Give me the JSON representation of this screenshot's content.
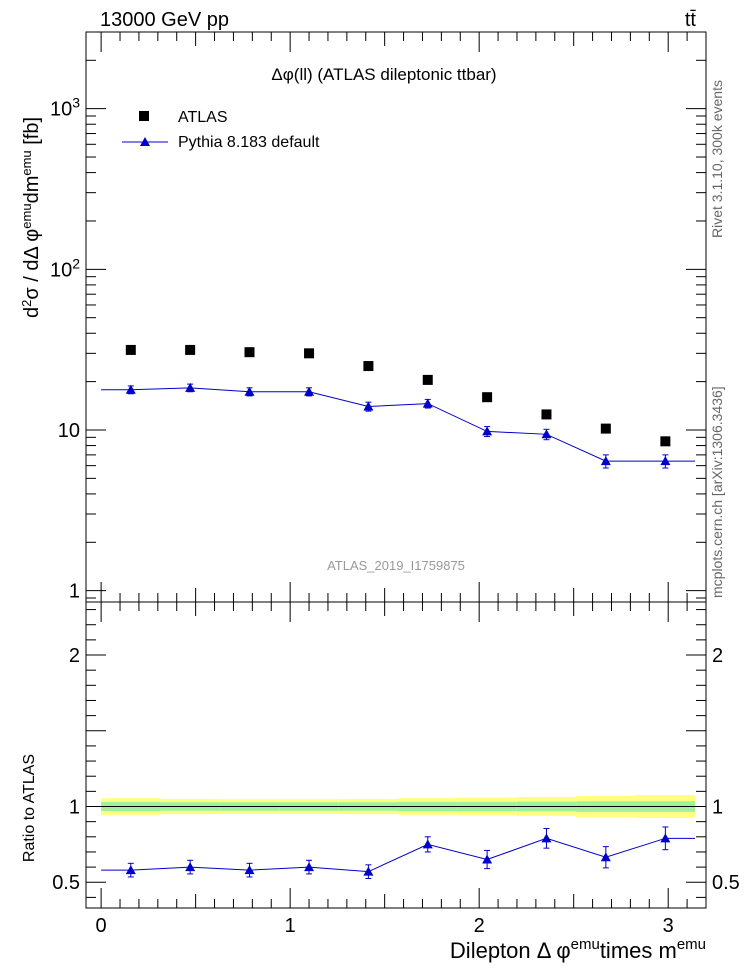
{
  "header": {
    "left_label": "13000 GeV pp",
    "right_label": "tt̄"
  },
  "side_labels": {
    "rivet": "Rivet 3.1.10, 300k events",
    "mcplots": "mcplots.cern.ch [arXiv:1306.3436]"
  },
  "colors": {
    "data_marker": "#000000",
    "mc_line": "#0000cc",
    "band_inner": "#a0f0a0",
    "band_outer": "#ffff80"
  },
  "chart_data": [
    {
      "type": "scatter",
      "panel": "main",
      "title": "Δφ(ll) (ATLAS dileptonic ttbar)",
      "watermark": "ATLAS_2019_I1759875",
      "ylabel": "d²σ / dΔ φ^emu dm^emu [fb]",
      "yscale": "log",
      "ylim": [
        0.85,
        3000
      ],
      "xlim": [
        -0.08,
        3.2
      ],
      "y_ticks": [
        {
          "value": 1,
          "label": "1"
        },
        {
          "value": 10,
          "label": "10"
        },
        {
          "value": 100,
          "label": "10²"
        },
        {
          "value": 1000,
          "label": "10³"
        }
      ],
      "legend_position": "top-left",
      "series": [
        {
          "name": "ATLAS",
          "style": "square",
          "x": [
            0.157,
            0.471,
            0.785,
            1.1,
            1.414,
            1.728,
            2.042,
            2.356,
            2.67,
            2.985
          ],
          "y": [
            31.5,
            31.5,
            30.5,
            30.0,
            25.0,
            20.5,
            16.0,
            12.5,
            10.2,
            8.5
          ]
        },
        {
          "name": "Pythia 8.183 default",
          "style": "line-triangle",
          "x": [
            0.157,
            0.471,
            0.785,
            1.1,
            1.414,
            1.728,
            2.042,
            2.356,
            2.67,
            2.985
          ],
          "y": [
            17.8,
            18.3,
            17.3,
            17.3,
            14.0,
            14.6,
            9.8,
            9.4,
            6.4,
            6.4
          ],
          "err": [
            1.0,
            1.0,
            1.0,
            1.0,
            0.9,
            0.9,
            0.7,
            0.7,
            0.6,
            0.6
          ],
          "step_edges": [
            0.0,
            0.314,
            0.628,
            0.942,
            1.257,
            1.571,
            1.885,
            2.199,
            2.513,
            2.827,
            3.142
          ]
        }
      ]
    },
    {
      "type": "scatter",
      "panel": "ratio",
      "ylabel": "Ratio to ATLAS",
      "xlabel": "Dilepton Δ φ^emu times m^emu",
      "ylim": [
        0.33,
        2.35
      ],
      "xlim": [
        -0.08,
        3.2
      ],
      "x_ticks": [
        {
          "value": 0,
          "label": "0"
        },
        {
          "value": 1,
          "label": "1"
        },
        {
          "value": 2,
          "label": "2"
        },
        {
          "value": 3,
          "label": "3"
        }
      ],
      "y_ticks": [
        {
          "value": 0.5,
          "label": "0.5"
        },
        {
          "value": 1,
          "label": "1"
        },
        {
          "value": 2,
          "label": "2"
        }
      ],
      "band": {
        "edges": [
          0.0,
          0.314,
          0.628,
          0.942,
          1.257,
          1.571,
          1.885,
          2.199,
          2.513,
          2.827,
          3.142
        ],
        "inner": [
          0.03,
          0.028,
          0.028,
          0.028,
          0.028,
          0.03,
          0.03,
          0.032,
          0.035,
          0.035
        ],
        "outer": [
          0.055,
          0.05,
          0.048,
          0.048,
          0.05,
          0.055,
          0.058,
          0.062,
          0.07,
          0.075
        ]
      },
      "series": [
        {
          "name": "Pythia 8.183 default",
          "x": [
            0.157,
            0.471,
            0.785,
            1.1,
            1.414,
            1.728,
            2.042,
            2.356,
            2.67,
            2.985
          ],
          "y": [
            0.58,
            0.6,
            0.58,
            0.6,
            0.57,
            0.75,
            0.65,
            0.79,
            0.665,
            0.79
          ],
          "err": [
            0.045,
            0.045,
            0.045,
            0.045,
            0.045,
            0.05,
            0.06,
            0.065,
            0.07,
            0.075
          ],
          "step_edges": [
            0.0,
            0.314,
            0.628,
            0.942,
            1.257,
            1.571,
            1.885,
            2.199,
            2.513,
            2.827,
            3.142
          ]
        }
      ]
    }
  ]
}
